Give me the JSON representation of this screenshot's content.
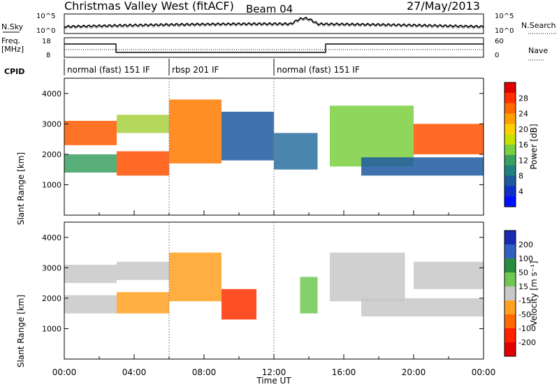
{
  "header": {
    "station": "Christmas Valley West (fitACF)",
    "beam": "Beam 04",
    "date": "27/May/2013"
  },
  "noise_panel": {
    "left_label": "N.Sky",
    "right_label": "N.Search",
    "tick_top": "10^5",
    "tick_bottom": "10^0"
  },
  "freq_panel": {
    "left_label_1": "Freq.",
    "left_label_2": "[MHz]",
    "right_label": "Nave",
    "left_ticks": [
      "18",
      "8"
    ],
    "right_ticks": [
      "60",
      "0"
    ]
  },
  "cpid": {
    "label": "CPID",
    "segments": [
      {
        "label": "normal (fast) 151 IF",
        "start_h": 0,
        "end_h": 6
      },
      {
        "label": "rbsp 201 IF",
        "start_h": 6,
        "end_h": 12
      },
      {
        "label": "normal (fast) 151 IF",
        "start_h": 12,
        "end_h": 24
      }
    ]
  },
  "chart_data": [
    {
      "type": "heatmap",
      "name": "power",
      "ylabel": "Slant Range [km]",
      "y_ticks": [
        1000,
        2000,
        3000,
        4000
      ],
      "ylim": [
        0,
        4500
      ],
      "xlim": [
        0,
        24
      ],
      "colorbar": {
        "label": "Power [dB]",
        "ticks": [
          "28",
          "24",
          "20",
          "16",
          "12",
          "8",
          "4"
        ],
        "colors": [
          "#e00000",
          "#ff3000",
          "#ff6a00",
          "#ffa000",
          "#ffd000",
          "#c8e000",
          "#7ad040",
          "#3aa060",
          "#20807c",
          "#1f5aa0",
          "#1030c8",
          "#0010ff"
        ]
      },
      "bands": [
        {
          "x0": 0,
          "x1": 3,
          "y0": 2300,
          "y1": 3100,
          "color": "#ff5a00"
        },
        {
          "x0": 0,
          "x1": 3,
          "y0": 1400,
          "y1": 2000,
          "color": "#3aa060"
        },
        {
          "x0": 3,
          "x1": 6,
          "y0": 1300,
          "y1": 2100,
          "color": "#ff5000"
        },
        {
          "x0": 3,
          "x1": 6,
          "y0": 2700,
          "y1": 3300,
          "color": "#a8d040"
        },
        {
          "x0": 6,
          "x1": 9,
          "y0": 1700,
          "y1": 3800,
          "color": "#ff7a00"
        },
        {
          "x0": 9,
          "x1": 12,
          "y0": 1800,
          "y1": 3400,
          "color": "#1f5aa0"
        },
        {
          "x0": 12,
          "x1": 14.5,
          "y0": 1500,
          "y1": 2700,
          "color": "#2a70a0"
        },
        {
          "x0": 15.2,
          "x1": 20,
          "y0": 1600,
          "y1": 3600,
          "color": "#7ad040"
        },
        {
          "x0": 17,
          "x1": 24,
          "y0": 1300,
          "y1": 1900,
          "color": "#1f5aa0"
        },
        {
          "x0": 20,
          "x1": 24,
          "y0": 2000,
          "y1": 3000,
          "color": "#ff5000"
        }
      ]
    },
    {
      "type": "heatmap",
      "name": "velocity",
      "ylabel": "Slant Range [km]",
      "y_ticks": [
        1000,
        2000,
        3000,
        4000
      ],
      "ylim": [
        0,
        4500
      ],
      "xlim": [
        0,
        24
      ],
      "colorbar": {
        "label": "Velocity [m s⁻¹]",
        "ticks": [
          "200",
          "100",
          "50",
          "15",
          "-15",
          "-50",
          "-100",
          "-200"
        ],
        "colors": [
          "#1a2ab0",
          "#3060c0",
          "#2a8c40",
          "#70c850",
          "#c8c8c8",
          "#ffa020",
          "#ff6a00",
          "#ff2000",
          "#e00000"
        ]
      },
      "bands": [
        {
          "x0": 0,
          "x1": 3,
          "y0": 2500,
          "y1": 3100,
          "color": "#c8c8c8"
        },
        {
          "x0": 0,
          "x1": 3,
          "y0": 1500,
          "y1": 2100,
          "color": "#c8c8c8"
        },
        {
          "x0": 3,
          "x1": 6,
          "y0": 1500,
          "y1": 2200,
          "color": "#ffa020"
        },
        {
          "x0": 3,
          "x1": 6,
          "y0": 2600,
          "y1": 3200,
          "color": "#c8c8c8"
        },
        {
          "x0": 6,
          "x1": 9,
          "y0": 1900,
          "y1": 3500,
          "color": "#ffa020"
        },
        {
          "x0": 9,
          "x1": 11,
          "y0": 1300,
          "y1": 2300,
          "color": "#ff3000"
        },
        {
          "x0": 13.5,
          "x1": 14.5,
          "y0": 1500,
          "y1": 2700,
          "color": "#70c850"
        },
        {
          "x0": 15.2,
          "x1": 19.5,
          "y0": 1900,
          "y1": 3500,
          "color": "#c8c8c8"
        },
        {
          "x0": 17,
          "x1": 24,
          "y0": 1400,
          "y1": 2000,
          "color": "#c8c8c8"
        },
        {
          "x0": 20,
          "x1": 24,
          "y0": 2300,
          "y1": 3200,
          "color": "#c8c8c8"
        }
      ]
    }
  ],
  "x_axis": {
    "label": "Time UT",
    "ticks": [
      "00:00",
      "04:00",
      "08:00",
      "12:00",
      "16:00",
      "20:00",
      "00:00"
    ]
  }
}
